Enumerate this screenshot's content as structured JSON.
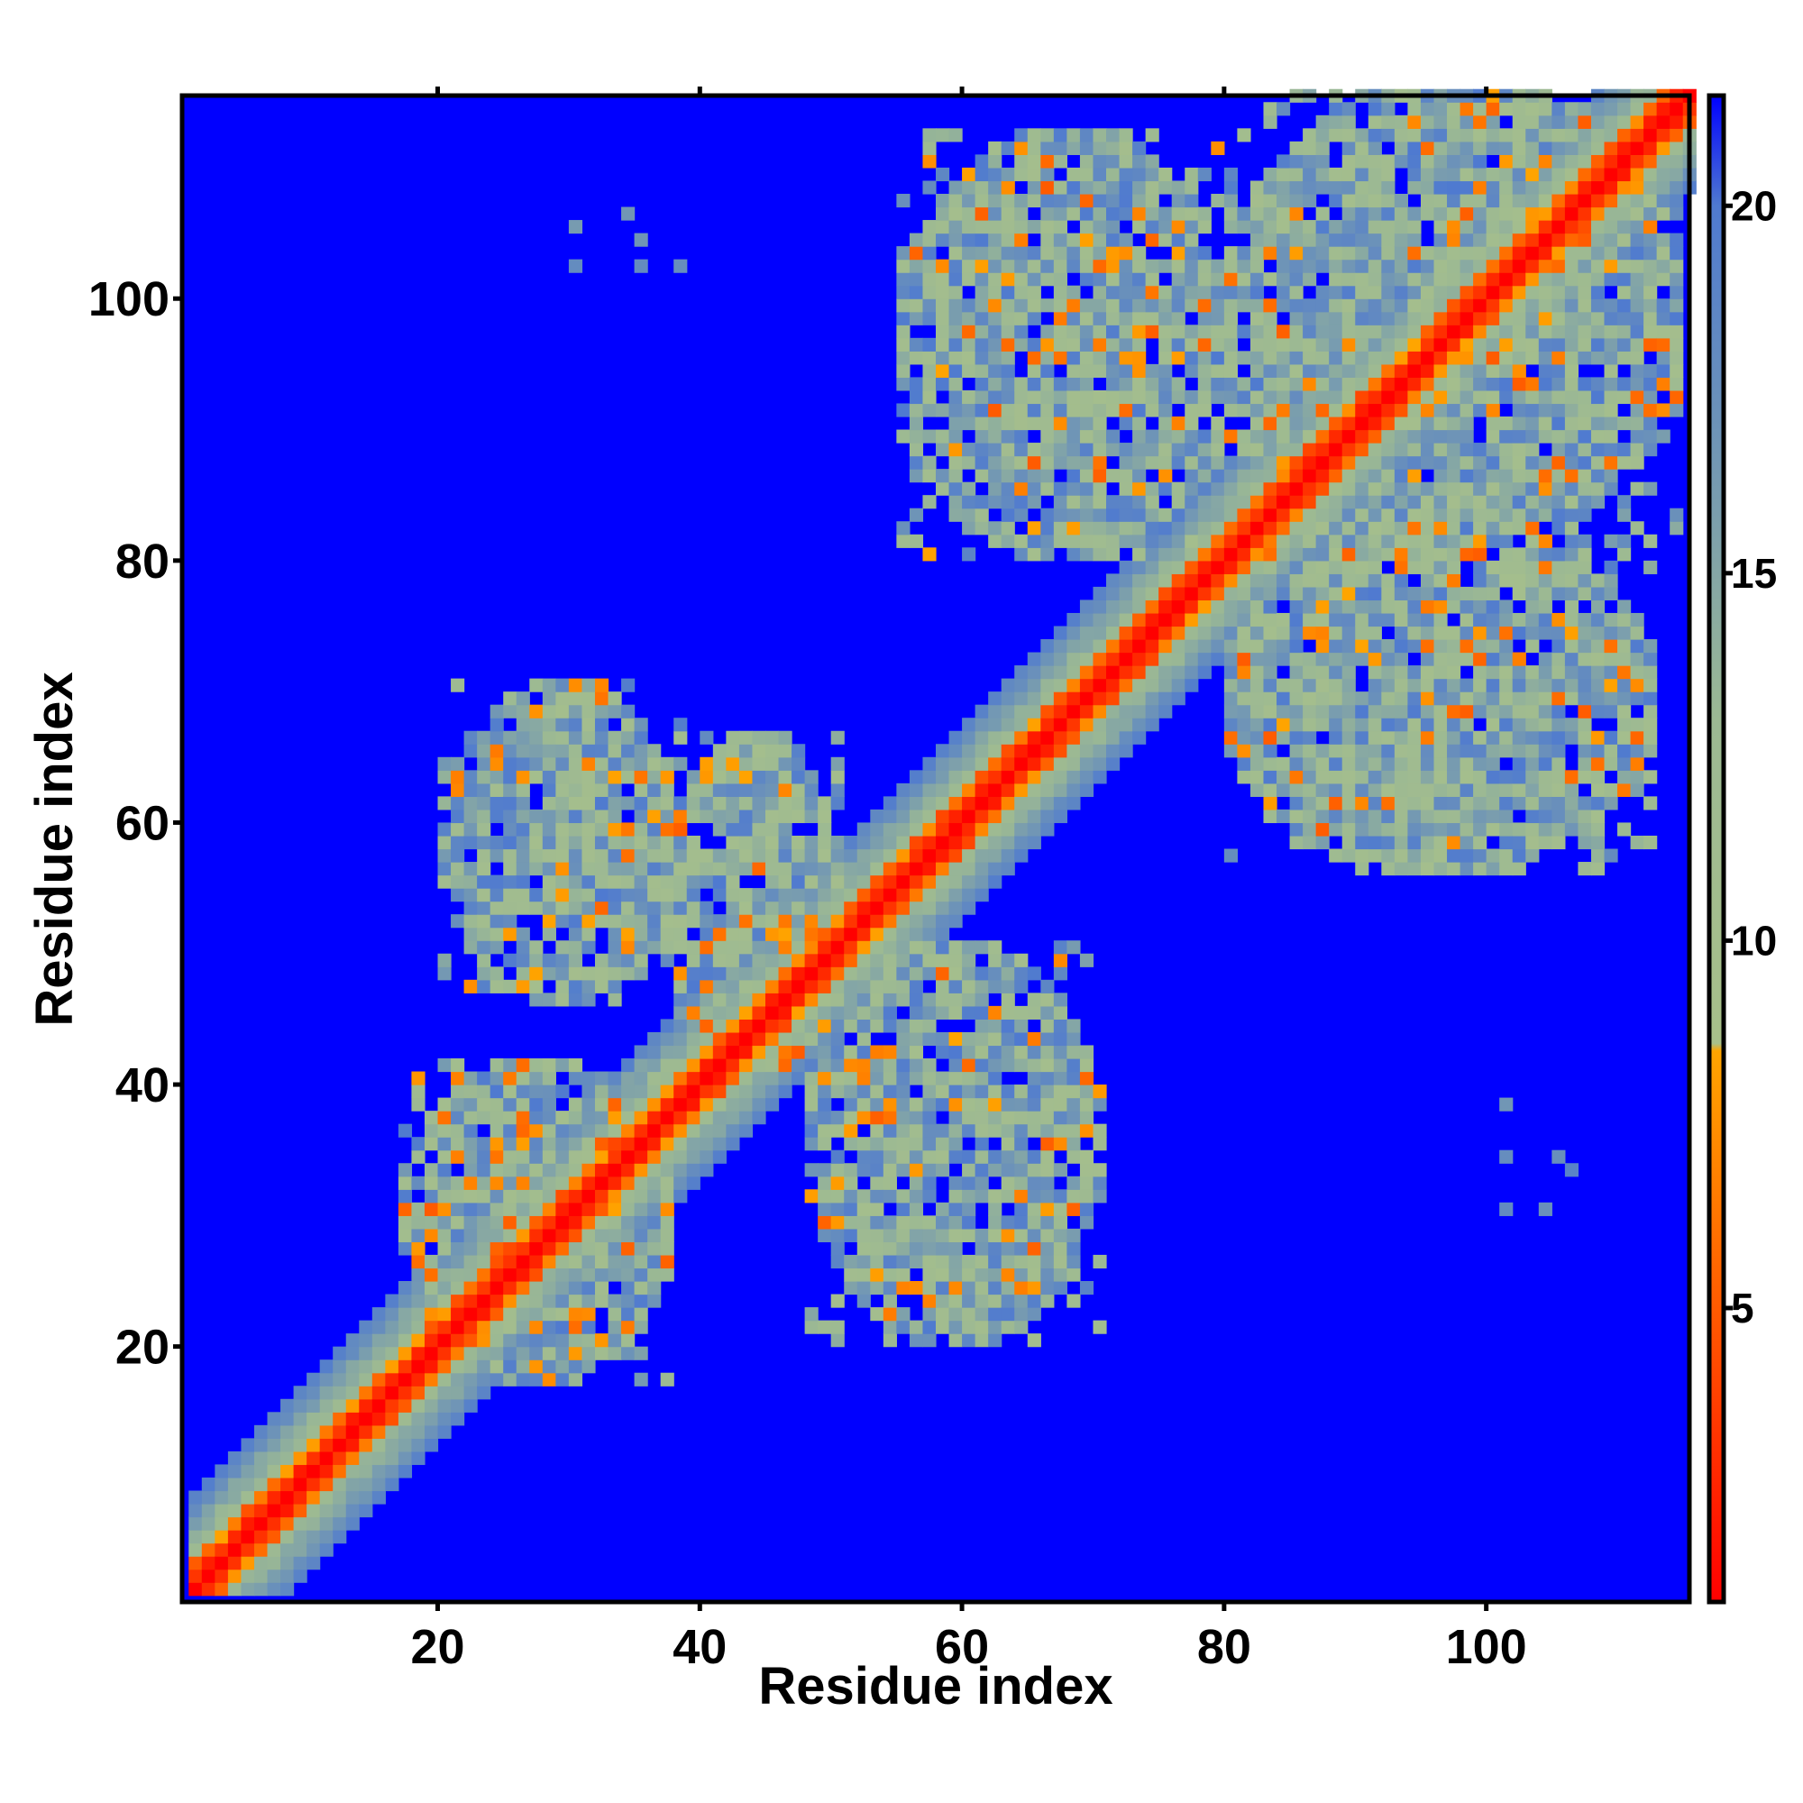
{
  "chart_data": {
    "type": "heatmap",
    "xlabel": "Residue index",
    "ylabel": "Residue index",
    "n_residues": 115,
    "xlim": [
      1,
      115
    ],
    "ylim": [
      1,
      115
    ],
    "x_ticks": [
      20,
      40,
      60,
      80,
      100
    ],
    "y_ticks": [
      20,
      40,
      60,
      80,
      100
    ],
    "colorbar": {
      "range": [
        1,
        21.5
      ],
      "ticks": [
        5,
        10,
        15,
        20
      ],
      "stops": [
        {
          "value": 1,
          "color": "#ff0000"
        },
        {
          "value": 4,
          "color": "#ff4500"
        },
        {
          "value": 8.5,
          "color": "#ffa500"
        },
        {
          "value": 8.6,
          "color": "#a8c08a"
        },
        {
          "value": 13,
          "color": "#9cb993"
        },
        {
          "value": 17,
          "color": "#6d93b8"
        },
        {
          "value": 20,
          "color": "#4f7ad0"
        },
        {
          "value": 21.5,
          "color": "#0000ff"
        }
      ]
    },
    "background_color": "#0000ff",
    "diagonal_color": "#ff0000",
    "contact_blocks": [
      {
        "x_range": [
          17,
          37
        ],
        "y_range": [
          17,
          41
        ]
      },
      {
        "x_range": [
          20,
          38
        ],
        "y_range": [
          46,
          70
        ]
      },
      {
        "x_range": [
          37,
          50
        ],
        "y_range": [
          40,
          66
        ]
      },
      {
        "x_range": [
          48,
          70
        ],
        "y_range": [
          20,
          50
        ]
      },
      {
        "x_range": [
          55,
          80
        ],
        "y_range": [
          80,
          112
        ]
      },
      {
        "x_range": [
          80,
          114
        ],
        "y_range": [
          80,
          116
        ]
      },
      {
        "x_range": [
          80,
          112
        ],
        "y_range": [
          56,
          82
        ]
      }
    ],
    "isolated_contacts": [
      [
        30,
        105
      ],
      [
        30,
        102
      ],
      [
        34,
        106
      ],
      [
        35,
        104
      ],
      [
        35,
        102
      ],
      [
        38,
        102
      ],
      [
        101,
        38
      ],
      [
        101,
        34
      ],
      [
        101,
        30
      ],
      [
        105,
        34
      ],
      [
        104,
        30
      ],
      [
        106,
        33
      ]
    ]
  }
}
